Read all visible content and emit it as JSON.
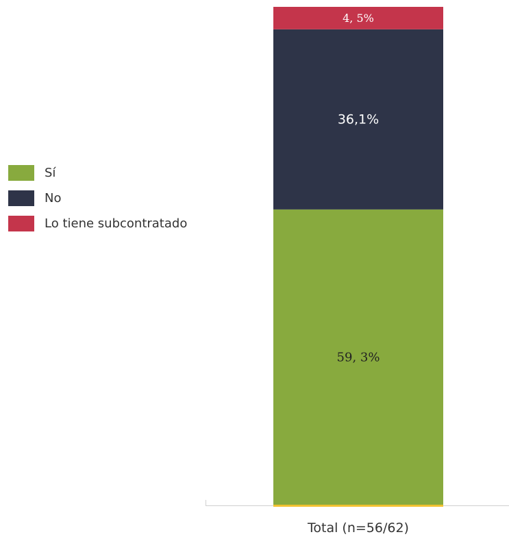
{
  "chart_data": {
    "type": "bar",
    "stacked": true,
    "orientation": "vertical",
    "categories": [
      "Total (n=56/62)"
    ],
    "series": [
      {
        "name": "Sí",
        "values": [
          59.3
        ],
        "label": "59, 3%",
        "color": "#88aa3e"
      },
      {
        "name": "No",
        "values": [
          36.1
        ],
        "label": "36,1%",
        "color": "#2e3448"
      },
      {
        "name": "Lo tiene subcontratado",
        "values": [
          4.5
        ],
        "label": "4, 5%",
        "color": "#c4354b"
      }
    ],
    "ylim": [
      0,
      100
    ],
    "grid": false,
    "legend_position": "left",
    "axis_color": "#d0d0d0",
    "baseline_accent_color": "#f2c230"
  }
}
